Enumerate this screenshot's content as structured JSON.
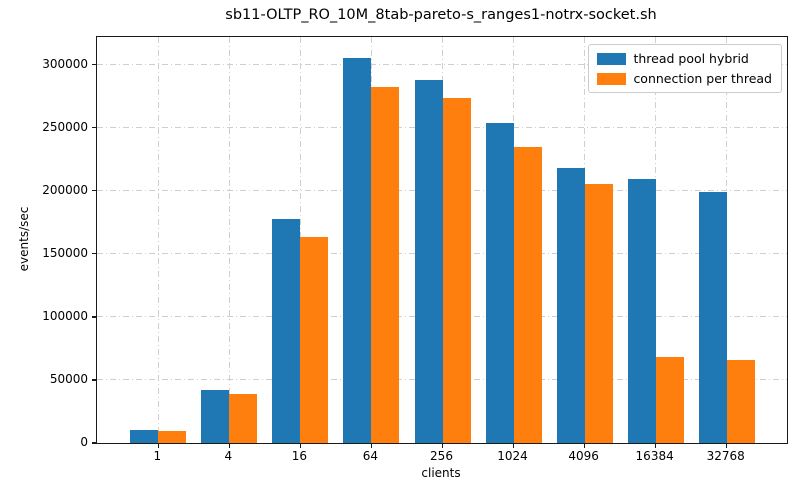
{
  "chart_data": {
    "type": "bar",
    "title": "sb11-OLTP_RO_10M_8tab-pareto-s_ranges1-notrx-socket.sh",
    "xlabel": "clients",
    "ylabel": "events/sec",
    "categories": [
      "1",
      "4",
      "16",
      "64",
      "256",
      "1024",
      "4096",
      "16384",
      "32768"
    ],
    "series": [
      {
        "name": "thread pool hybrid",
        "color": "#1f77b4",
        "values": [
          10500,
          42000,
          177500,
          305500,
          288000,
          254000,
          218000,
          209000,
          199000
        ]
      },
      {
        "name": "connection per thread",
        "color": "#ff7f0e",
        "values": [
          9300,
          39000,
          163500,
          282500,
          274000,
          234500,
          205500,
          68000,
          65500
        ]
      }
    ],
    "yticks": [
      0,
      50000,
      100000,
      150000,
      200000,
      250000,
      300000
    ],
    "ylim": [
      0,
      322000
    ],
    "grid": true,
    "legend_position": "upper right"
  }
}
